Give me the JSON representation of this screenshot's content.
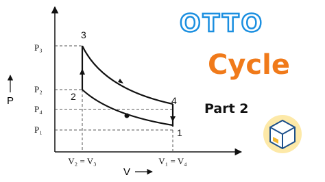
{
  "title": "OTTO",
  "subtitle": "Cycle",
  "part": "Part 2",
  "axes": {
    "y_label": "P",
    "x_label": "V"
  },
  "y_labels": [
    "P₃",
    "P₂",
    "P₄",
    "P₁"
  ],
  "x_labels": [
    "V₂ = V₃",
    "V₁ = V₄"
  ],
  "points": [
    "3",
    "2",
    "4",
    "1"
  ]
}
